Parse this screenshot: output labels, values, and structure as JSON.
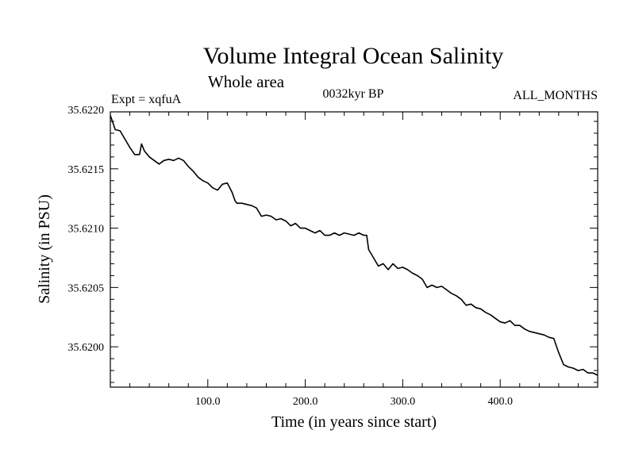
{
  "chart_data": {
    "type": "line",
    "title": "Volume Integral Ocean Salinity",
    "subtitle": "Whole area",
    "experiment_label": "Expt = xqfuA",
    "period_label": "0032kyr BP",
    "months_label": "ALL_MONTHS",
    "xlabel": "Time (in years since start)",
    "ylabel": "Salinity (in PSU)",
    "xlim": [
      0,
      500
    ],
    "ylim": [
      35.61966,
      35.62198
    ],
    "x_ticks": [
      {
        "value": 100,
        "label": "100.0"
      },
      {
        "value": 200,
        "label": "200.0"
      },
      {
        "value": 300,
        "label": "300.0"
      },
      {
        "value": 400,
        "label": "400.0"
      }
    ],
    "y_ticks": [
      {
        "value": 35.622,
        "label": "35.6220"
      },
      {
        "value": 35.6215,
        "label": "35.6215"
      },
      {
        "value": 35.621,
        "label": "35.6210"
      },
      {
        "value": 35.6205,
        "label": "35.6205"
      },
      {
        "value": 35.62,
        "label": "35.6200"
      }
    ],
    "series": [
      {
        "name": "Salinity",
        "color": "#000000",
        "x": [
          0,
          3,
          5,
          10,
          15,
          20,
          25,
          30,
          32,
          35,
          40,
          45,
          50,
          55,
          60,
          65,
          70,
          75,
          80,
          85,
          90,
          95,
          100,
          105,
          110,
          115,
          120,
          125,
          128,
          130,
          135,
          140,
          145,
          150,
          155,
          160,
          165,
          170,
          175,
          180,
          185,
          190,
          195,
          200,
          205,
          210,
          215,
          220,
          225,
          230,
          235,
          240,
          245,
          250,
          255,
          260,
          263,
          265,
          270,
          275,
          280,
          285,
          290,
          295,
          300,
          305,
          310,
          315,
          320,
          325,
          330,
          335,
          340,
          345,
          350,
          355,
          360,
          365,
          370,
          375,
          380,
          385,
          390,
          395,
          400,
          405,
          410,
          415,
          420,
          425,
          430,
          435,
          440,
          445,
          450,
          455,
          460,
          465,
          470,
          475,
          480,
          485,
          490,
          495,
          500
        ],
        "values": [
          35.62195,
          35.62188,
          35.62183,
          35.62182,
          35.62175,
          35.62168,
          35.62162,
          35.62162,
          35.62171,
          35.62165,
          35.6216,
          35.62157,
          35.62154,
          35.62157,
          35.62158,
          35.62157,
          35.62159,
          35.62157,
          35.62152,
          35.62148,
          35.62143,
          35.6214,
          35.62138,
          35.62134,
          35.62132,
          35.62137,
          35.62138,
          35.6213,
          35.62123,
          35.62121,
          35.62121,
          35.6212,
          35.62119,
          35.62117,
          35.6211,
          35.62111,
          35.6211,
          35.62107,
          35.62108,
          35.62106,
          35.62102,
          35.62104,
          35.621,
          35.621,
          35.62098,
          35.62096,
          35.62098,
          35.62094,
          35.62094,
          35.62096,
          35.62094,
          35.62096,
          35.62095,
          35.62094,
          35.62096,
          35.62094,
          35.62094,
          35.62082,
          35.62075,
          35.62068,
          35.6207,
          35.62065,
          35.6207,
          35.62066,
          35.62067,
          35.62065,
          35.62062,
          35.6206,
          35.62057,
          35.6205,
          35.62052,
          35.6205,
          35.62051,
          35.62048,
          35.62045,
          35.62043,
          35.6204,
          35.62035,
          35.62036,
          35.62033,
          35.62032,
          35.62029,
          35.62027,
          35.62024,
          35.62021,
          35.6202,
          35.62022,
          35.62018,
          35.62018,
          35.62015,
          35.62013,
          35.62012,
          35.62011,
          35.6201,
          35.62008,
          35.62007,
          35.61995,
          35.61985,
          35.61983,
          35.61982,
          35.6198,
          35.61981,
          35.61978,
          35.61978,
          35.61976
        ]
      }
    ]
  }
}
